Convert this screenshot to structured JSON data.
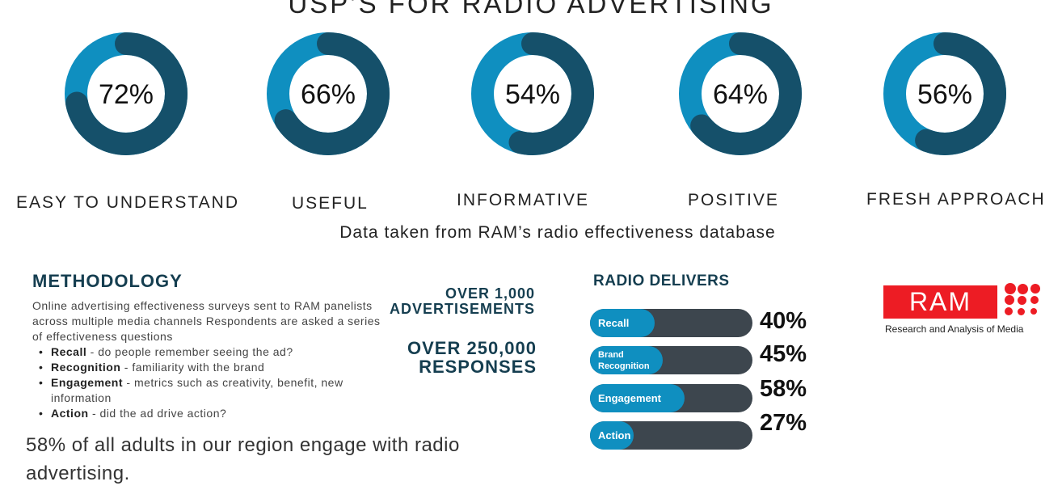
{
  "title": "USP’S FOR RADIO ADVERTISING",
  "source_note": "Data taken from RAM’s radio effectiveness database",
  "colors": {
    "light": "#0f8fc0",
    "dark": "#15506a",
    "bar_track": "#3d464e",
    "heading": "#153e50",
    "brand_red": "#ed1c24"
  },
  "chart_data": [
    {
      "type": "pie",
      "title": "USP’S FOR RADIO ADVERTISING",
      "donuts": [
        {
          "label": "EASY TO UNDERSTAND",
          "value": 72,
          "display": "72%"
        },
        {
          "label": "USEFUL",
          "value": 66,
          "display": "66%"
        },
        {
          "label": "INFORMATIVE",
          "value": 54,
          "display": "54%"
        },
        {
          "label": "POSITIVE",
          "value": 64,
          "display": "64%"
        },
        {
          "label": "FRESH APPROACH",
          "value": 56,
          "display": "56%"
        }
      ]
    },
    {
      "type": "bar",
      "title": "RADIO DELIVERS",
      "categories": [
        "Recall",
        "Brand Recognition",
        "Engagement",
        "Action"
      ],
      "values": [
        40,
        45,
        58,
        27
      ],
      "display": [
        "40%",
        "45%",
        "58%",
        "27%"
      ],
      "xlim": [
        0,
        100
      ]
    }
  ],
  "methodology": {
    "heading": "METHODOLOGY",
    "intro": "Online advertising effectiveness surveys sent to RAM panelists across multiple media channels Respondents are asked a series of effectiveness questions",
    "items": [
      {
        "term": "Recall",
        "desc": " - do people remember seeing the ad?"
      },
      {
        "term": "Recognition",
        "desc": " - familiarity with the brand"
      },
      {
        "term": "Engagement",
        "desc": " - metrics such as creativity, benefit, new information"
      },
      {
        "term": "Action",
        "desc": " - did the ad drive action?"
      }
    ]
  },
  "stats": [
    {
      "line1": "OVER 1,000",
      "line2": "ADVERTISEMENTS"
    },
    {
      "line1": "OVER 250,000",
      "line2": "RESPONSES"
    }
  ],
  "bottom_text": "58% of all adults in our region engage with radio advertising.",
  "radio_delivers": {
    "heading": "RADIO DELIVERS",
    "bars": [
      {
        "label": "Recall",
        "value": 40,
        "display": "40%"
      },
      {
        "label": "Brand Recognition",
        "line1": "Brand",
        "line2": "Recognition",
        "value": 45,
        "display": "45%"
      },
      {
        "label": "Engagement",
        "value": 58,
        "display": "58%"
      },
      {
        "label": "Action",
        "value": 27,
        "display": "27%"
      }
    ]
  },
  "logo": {
    "text": "RAM",
    "tagline": "Research and Analysis of Media"
  }
}
